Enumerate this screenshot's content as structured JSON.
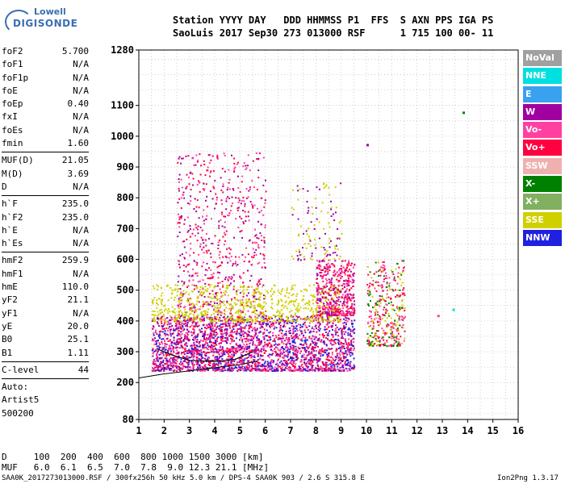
{
  "logo": {
    "line1": "Lowell",
    "line2": "DIGISONDE"
  },
  "header": {
    "line1": "Station YYYY DAY   DDD HHMMSS P1  FFS  S AXN PPS IGA PS",
    "line2": "SaoLuis 2017 Sep30 273 013000 RSF      1 715 100 00- 11"
  },
  "params": {
    "group1": [
      {
        "name": "foF2",
        "value": "5.700"
      },
      {
        "name": "foF1",
        "value": "N/A"
      },
      {
        "name": "foF1p",
        "value": "N/A"
      },
      {
        "name": "foE",
        "value": "N/A"
      },
      {
        "name": "foEp",
        "value": "0.40"
      },
      {
        "name": "fxI",
        "value": "N/A"
      },
      {
        "name": "foEs",
        "value": "N/A"
      },
      {
        "name": "fmin",
        "value": "1.60"
      }
    ],
    "group2": [
      {
        "name": "MUF(D)",
        "value": "21.05"
      },
      {
        "name": "M(D)",
        "value": "3.69"
      },
      {
        "name": "D",
        "value": "N/A"
      }
    ],
    "group3": [
      {
        "name": "h`F",
        "value": "235.0"
      },
      {
        "name": "h`F2",
        "value": "235.0"
      },
      {
        "name": "h`E",
        "value": "N/A"
      },
      {
        "name": "h`Es",
        "value": "N/A"
      }
    ],
    "group4": [
      {
        "name": "hmF2",
        "value": "259.9"
      },
      {
        "name": "hmF1",
        "value": "N/A"
      },
      {
        "name": "hmE",
        "value": "110.0"
      },
      {
        "name": "yF2",
        "value": "21.1"
      },
      {
        "name": "yF1",
        "value": "N/A"
      },
      {
        "name": "yE",
        "value": "20.0"
      },
      {
        "name": "B0",
        "value": "25.1"
      },
      {
        "name": "B1",
        "value": "1.11"
      }
    ],
    "clevel": {
      "name": "C-level",
      "value": "44"
    },
    "auto": [
      "Auto:",
      "Artist5",
      "500200"
    ]
  },
  "legend": [
    {
      "label": "NoVal",
      "color": "#a0a0a0"
    },
    {
      "label": "NNE",
      "color": "#00e0e0"
    },
    {
      "label": "E",
      "color": "#3aa0f0"
    },
    {
      "label": "W",
      "color": "#a000a0"
    },
    {
      "label": "Vo-",
      "color": "#ff40a0"
    },
    {
      "label": "Vo+",
      "color": "#ff0040"
    },
    {
      "label": "SSW",
      "color": "#f0b0b0"
    },
    {
      "label": "X-",
      "color": "#008000"
    },
    {
      "label": "X+",
      "color": "#80b060"
    },
    {
      "label": "SSE",
      "color": "#d0d000"
    },
    {
      "label": "NNW",
      "color": "#2020e0"
    }
  ],
  "chart_data": {
    "type": "scatter",
    "xlim": [
      1,
      16
    ],
    "ylim": [
      80,
      1280
    ],
    "x_ticks": [
      1,
      2,
      3,
      4,
      5,
      6,
      7,
      8,
      9,
      10,
      11,
      12,
      13,
      14,
      15,
      16
    ],
    "y_ticks": [
      80,
      200,
      300,
      400,
      500,
      600,
      700,
      800,
      900,
      1000,
      1100,
      1280
    ],
    "grid": true,
    "density": [
      {
        "xmin": 1.5,
        "xmax": 9.5,
        "ymin": 240,
        "ymax": 420,
        "colors": [
          "#ff0040",
          "#ff40a0",
          "#a000a0",
          "#2020e0"
        ],
        "count": 2600
      },
      {
        "xmin": 2.5,
        "xmax": 6.0,
        "ymin": 300,
        "ymax": 950,
        "colors": [
          "#a000a0",
          "#ff40a0",
          "#ff0040"
        ],
        "count": 900
      },
      {
        "xmin": 1.5,
        "xmax": 9.0,
        "ymin": 400,
        "ymax": 520,
        "colors": [
          "#d0d000"
        ],
        "count": 700
      },
      {
        "xmin": 8.0,
        "xmax": 9.5,
        "ymin": 420,
        "ymax": 600,
        "colors": [
          "#ff40a0",
          "#a000a0",
          "#ff0040"
        ],
        "count": 500
      },
      {
        "xmin": 10.0,
        "xmax": 11.5,
        "ymin": 320,
        "ymax": 600,
        "colors": [
          "#ff0040",
          "#ff40a0",
          "#d0d000",
          "#008000"
        ],
        "count": 400
      },
      {
        "xmin": 7.0,
        "xmax": 9.0,
        "ymin": 600,
        "ymax": 850,
        "colors": [
          "#d0d000",
          "#a000a0"
        ],
        "count": 120
      }
    ],
    "isolated_points": [
      {
        "x": 10.0,
        "y": 975,
        "color": "#a000a0"
      },
      {
        "x": 13.8,
        "y": 1080,
        "color": "#008000"
      },
      {
        "x": 13.4,
        "y": 440,
        "color": "#00e0e0"
      },
      {
        "x": 12.8,
        "y": 420,
        "color": "#ff40a0"
      }
    ],
    "profile_curve": [
      {
        "x": 1.0,
        "y": 215
      },
      {
        "x": 2.0,
        "y": 228
      },
      {
        "x": 3.0,
        "y": 238
      },
      {
        "x": 4.0,
        "y": 248
      },
      {
        "x": 5.0,
        "y": 258
      },
      {
        "x": 5.7,
        "y": 270
      }
    ],
    "trace_curve": [
      {
        "x": 1.7,
        "y": 310
      },
      {
        "x": 2.3,
        "y": 290
      },
      {
        "x": 3.0,
        "y": 272
      },
      {
        "x": 4.0,
        "y": 268
      },
      {
        "x": 4.8,
        "y": 275
      },
      {
        "x": 5.5,
        "y": 300
      }
    ]
  },
  "footer": {
    "d_row": "D     100  200  400  600  800 1000 1500 3000 [km]",
    "muf_row": "MUF   6.0  6.1  6.5  7.0  7.8  9.0 12.3 21.1 [MHz]",
    "file_line": "SAA0K_2017273013000.RSF / 300fx256h 50 kHz 5.0 km / DPS-4 SAA0K 903 / 2.6 S 315.8 E",
    "version": "Ion2Png 1.3.17"
  }
}
